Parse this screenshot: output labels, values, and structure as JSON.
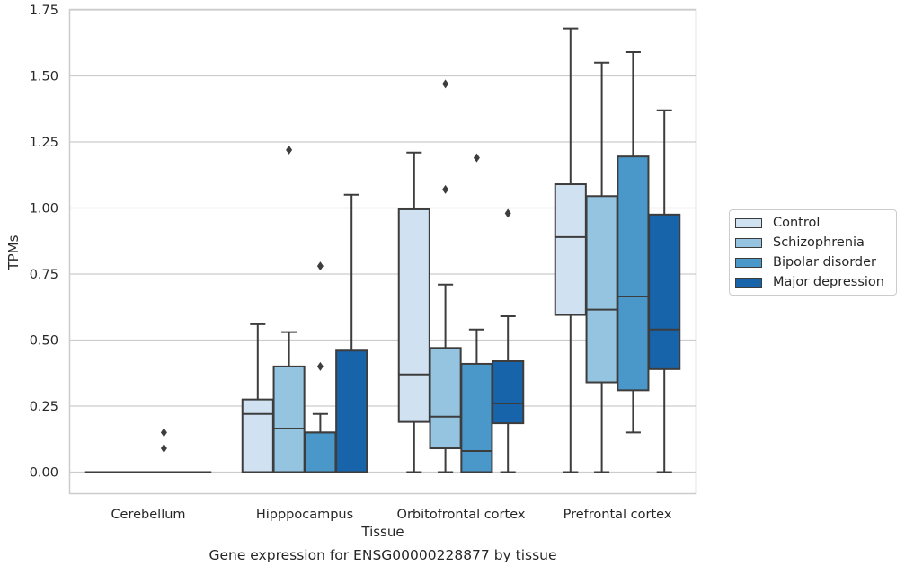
{
  "chart_data": {
    "type": "box",
    "caption": "Gene expression for ENSG00000228877 by tissue",
    "xlabel": "Tissue",
    "ylabel": "TPMs",
    "ylim": [
      -0.08,
      1.75
    ],
    "yticks": [
      "0.00",
      "0.25",
      "0.50",
      "0.75",
      "1.00",
      "1.25",
      "1.50",
      "1.75"
    ],
    "ytick_values": [
      0,
      0.25,
      0.5,
      0.75,
      1.0,
      1.25,
      1.5,
      1.75
    ],
    "grid": "horizontal",
    "legend_position": "right",
    "categories": [
      "Cerebellum",
      "Hipppocampus",
      "Orbitofrontal cortex",
      "Prefrontal cortex"
    ],
    "series": [
      {
        "name": "Control",
        "color": "#d0e1f2",
        "boxes": [
          {
            "whislo": 0,
            "q1": 0,
            "med": 0,
            "q3": 0,
            "whishi": 0,
            "fliers": []
          },
          {
            "whislo": 0,
            "q1": 0,
            "med": 0.22,
            "q3": 0.275,
            "whishi": 0.56,
            "fliers": []
          },
          {
            "whislo": 0,
            "q1": 0.19,
            "med": 0.37,
            "q3": 0.995,
            "whishi": 1.21,
            "fliers": []
          },
          {
            "whislo": 0,
            "q1": 0.595,
            "med": 0.89,
            "q3": 1.09,
            "whishi": 1.68,
            "fliers": []
          }
        ]
      },
      {
        "name": "Schizophrenia",
        "color": "#94c4df",
        "boxes": [
          {
            "whislo": 0,
            "q1": 0,
            "med": 0,
            "q3": 0,
            "whishi": 0,
            "fliers": []
          },
          {
            "whislo": 0,
            "q1": 0,
            "med": 0.165,
            "q3": 0.4,
            "whishi": 0.53,
            "fliers": [
              1.22
            ]
          },
          {
            "whislo": 0,
            "q1": 0.09,
            "med": 0.21,
            "q3": 0.47,
            "whishi": 0.71,
            "fliers": [
              1.07,
              1.47
            ]
          },
          {
            "whislo": 0,
            "q1": 0.34,
            "med": 0.615,
            "q3": 1.045,
            "whishi": 1.55,
            "fliers": []
          }
        ]
      },
      {
        "name": "Bipolar disorder",
        "color": "#4a98c9",
        "boxes": [
          {
            "whislo": 0,
            "q1": 0,
            "med": 0,
            "q3": 0,
            "whishi": 0,
            "fliers": [
              0.09,
              0.15
            ]
          },
          {
            "whislo": 0,
            "q1": 0,
            "med": 0.15,
            "q3": 0.15,
            "whishi": 0.22,
            "fliers": [
              0.4,
              0.78
            ]
          },
          {
            "whislo": 0,
            "q1": 0,
            "med": 0.08,
            "q3": 0.41,
            "whishi": 0.54,
            "fliers": [
              1.19
            ]
          },
          {
            "whislo": 0.15,
            "q1": 0.31,
            "med": 0.665,
            "q3": 1.195,
            "whishi": 1.59,
            "fliers": []
          }
        ]
      },
      {
        "name": "Major depression",
        "color": "#1764ab",
        "boxes": [
          {
            "whislo": 0,
            "q1": 0,
            "med": 0,
            "q3": 0,
            "whishi": 0,
            "fliers": []
          },
          {
            "whislo": 0,
            "q1": 0,
            "med": 0,
            "q3": 0.46,
            "whishi": 1.05,
            "fliers": []
          },
          {
            "whislo": 0,
            "q1": 0.185,
            "med": 0.26,
            "q3": 0.42,
            "whishi": 0.59,
            "fliers": [
              0.98
            ]
          },
          {
            "whislo": 0,
            "q1": 0.39,
            "med": 0.54,
            "q3": 0.975,
            "whishi": 1.37,
            "fliers": []
          }
        ]
      }
    ]
  }
}
